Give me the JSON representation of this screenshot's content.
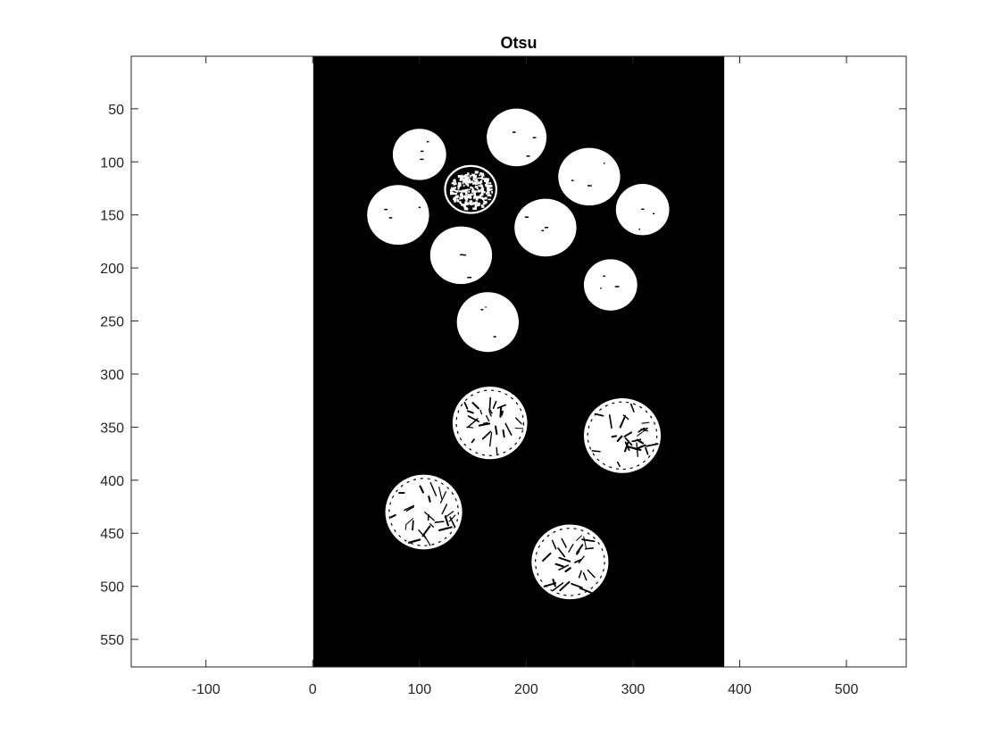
{
  "chart_data": {
    "type": "image",
    "title": "Otsu",
    "xlabel": "",
    "ylabel": "",
    "xlim": [
      -170,
      556
    ],
    "ylim": [
      576,
      0.5
    ],
    "y_direction": "reverse",
    "xticks": [
      -100,
      0,
      100,
      200,
      300,
      400,
      500
    ],
    "yticks": [
      50,
      100,
      150,
      200,
      250,
      300,
      350,
      400,
      450,
      500,
      550
    ],
    "grid": false,
    "image": {
      "x_range": [
        0.5,
        385.5
      ],
      "y_range": [
        0.5,
        576
      ],
      "background_color": "#000000",
      "foreground_color": "#ffffff"
    },
    "blobs": [
      {
        "name": "coin",
        "cx": 191,
        "cy": 77,
        "rx": 28,
        "ry": 27,
        "kind": "solid"
      },
      {
        "name": "coin",
        "cx": 100,
        "cy": 93,
        "rx": 25,
        "ry": 24,
        "kind": "solid"
      },
      {
        "name": "coin",
        "cx": 259,
        "cy": 114,
        "rx": 29,
        "ry": 27,
        "kind": "solid"
      },
      {
        "name": "coin",
        "cx": 148,
        "cy": 126,
        "rx": 24,
        "ry": 22,
        "kind": "noisy"
      },
      {
        "name": "coin",
        "cx": 309,
        "cy": 145,
        "rx": 25,
        "ry": 24,
        "kind": "solid"
      },
      {
        "name": "coin",
        "cx": 80,
        "cy": 150,
        "rx": 29,
        "ry": 28,
        "kind": "solid"
      },
      {
        "name": "coin",
        "cx": 218,
        "cy": 162,
        "rx": 29,
        "ry": 27,
        "kind": "solid"
      },
      {
        "name": "coin",
        "cx": 139,
        "cy": 188,
        "rx": 29,
        "ry": 27,
        "kind": "solid"
      },
      {
        "name": "coin",
        "cx": 279,
        "cy": 216,
        "rx": 25,
        "ry": 24,
        "kind": "solid"
      },
      {
        "name": "coin",
        "cx": 164,
        "cy": 251,
        "rx": 29,
        "ry": 28,
        "kind": "solid"
      },
      {
        "name": "coin",
        "cx": 166,
        "cy": 346,
        "rx": 35,
        "ry": 34,
        "kind": "detailed"
      },
      {
        "name": "coin",
        "cx": 290,
        "cy": 358,
        "rx": 36,
        "ry": 35,
        "kind": "detailed"
      },
      {
        "name": "coin",
        "cx": 104,
        "cy": 430,
        "rx": 36,
        "ry": 35,
        "kind": "detailed"
      },
      {
        "name": "coin",
        "cx": 241,
        "cy": 477,
        "rx": 36,
        "ry": 35,
        "kind": "detailed"
      }
    ]
  }
}
